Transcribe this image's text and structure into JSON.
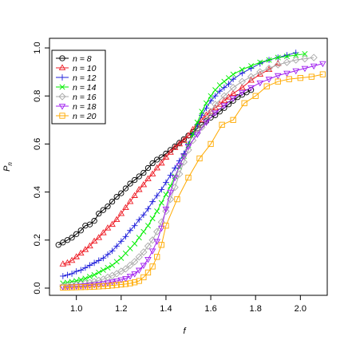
{
  "chart_data": {
    "type": "line",
    "title": "",
    "xlabel": "f",
    "ylabel": "P_n",
    "xlim": [
      0.88,
      2.12
    ],
    "ylim": [
      -0.03,
      1.04
    ],
    "xticks": [
      1.0,
      1.2,
      1.4,
      1.6,
      1.8,
      2.0
    ],
    "xtick_labels": [
      "1.0",
      "1.2",
      "1.4",
      "1.6",
      "1.8",
      "2.0"
    ],
    "yticks": [
      0.0,
      0.2,
      0.4,
      0.6,
      0.8,
      1.0
    ],
    "ytick_labels": [
      "0.0",
      "0.2",
      "0.4",
      "0.6",
      "0.8",
      "1.0"
    ],
    "grid": false,
    "legend_position": "top-left",
    "series": [
      {
        "name": "n = 8",
        "color": "#000000",
        "marker": "circle",
        "x": [
          0.92,
          0.94,
          0.96,
          0.98,
          1.0,
          1.02,
          1.04,
          1.06,
          1.08,
          1.1,
          1.12,
          1.14,
          1.16,
          1.18,
          1.2,
          1.22,
          1.24,
          1.26,
          1.28,
          1.3,
          1.32,
          1.34,
          1.36,
          1.38,
          1.4,
          1.42,
          1.44,
          1.46,
          1.48,
          1.5,
          1.52,
          1.54,
          1.56,
          1.58,
          1.6,
          1.62,
          1.64,
          1.66,
          1.68,
          1.7,
          1.72,
          1.74,
          1.76,
          1.78
        ],
        "y": [
          0.18,
          0.19,
          0.2,
          0.21,
          0.225,
          0.24,
          0.26,
          0.265,
          0.28,
          0.31,
          0.325,
          0.34,
          0.36,
          0.38,
          0.395,
          0.415,
          0.435,
          0.45,
          0.465,
          0.48,
          0.5,
          0.52,
          0.535,
          0.545,
          0.56,
          0.575,
          0.59,
          0.605,
          0.62,
          0.635,
          0.65,
          0.665,
          0.68,
          0.695,
          0.71,
          0.72,
          0.735,
          0.75,
          0.765,
          0.78,
          0.795,
          0.805,
          0.815,
          0.825
        ]
      },
      {
        "name": "n = 10",
        "color": "#ee1c25",
        "marker": "triangle",
        "x": [
          0.94,
          0.96,
          0.98,
          1.0,
          1.02,
          1.04,
          1.06,
          1.08,
          1.1,
          1.12,
          1.14,
          1.16,
          1.18,
          1.2,
          1.22,
          1.24,
          1.26,
          1.28,
          1.3,
          1.32,
          1.34,
          1.36,
          1.38,
          1.4,
          1.42,
          1.44,
          1.46,
          1.48,
          1.5,
          1.52,
          1.54,
          1.56,
          1.58,
          1.6,
          1.62,
          1.64,
          1.66,
          1.68,
          1.7,
          1.74,
          1.78,
          1.82,
          1.86,
          1.9
        ],
        "y": [
          0.1,
          0.105,
          0.115,
          0.13,
          0.145,
          0.16,
          0.175,
          0.195,
          0.21,
          0.23,
          0.25,
          0.265,
          0.285,
          0.31,
          0.335,
          0.36,
          0.385,
          0.41,
          0.43,
          0.455,
          0.475,
          0.5,
          0.52,
          0.545,
          0.565,
          0.585,
          0.6,
          0.615,
          0.635,
          0.66,
          0.68,
          0.7,
          0.72,
          0.735,
          0.75,
          0.765,
          0.78,
          0.795,
          0.81,
          0.835,
          0.865,
          0.89,
          0.91,
          0.935
        ]
      },
      {
        "name": "n = 12",
        "color": "#1f1fdb",
        "marker": "plus",
        "x": [
          0.94,
          0.96,
          0.98,
          1.0,
          1.02,
          1.04,
          1.06,
          1.08,
          1.1,
          1.12,
          1.14,
          1.16,
          1.18,
          1.2,
          1.22,
          1.24,
          1.26,
          1.28,
          1.3,
          1.32,
          1.34,
          1.36,
          1.38,
          1.4,
          1.42,
          1.44,
          1.46,
          1.48,
          1.5,
          1.52,
          1.54,
          1.56,
          1.58,
          1.6,
          1.62,
          1.64,
          1.66,
          1.68,
          1.7,
          1.74,
          1.78,
          1.82,
          1.86,
          1.9,
          1.94,
          1.98
        ],
        "y": [
          0.05,
          0.055,
          0.06,
          0.07,
          0.075,
          0.085,
          0.095,
          0.105,
          0.115,
          0.125,
          0.14,
          0.155,
          0.175,
          0.195,
          0.215,
          0.24,
          0.26,
          0.285,
          0.305,
          0.33,
          0.36,
          0.385,
          0.41,
          0.44,
          0.47,
          0.5,
          0.53,
          0.56,
          0.6,
          0.64,
          0.68,
          0.72,
          0.75,
          0.78,
          0.8,
          0.82,
          0.835,
          0.85,
          0.87,
          0.895,
          0.915,
          0.935,
          0.95,
          0.96,
          0.97,
          0.98
        ]
      },
      {
        "name": "n = 14",
        "color": "#00ee00",
        "marker": "cross",
        "x": [
          0.94,
          0.96,
          0.98,
          1.0,
          1.02,
          1.04,
          1.06,
          1.08,
          1.1,
          1.12,
          1.14,
          1.16,
          1.18,
          1.2,
          1.22,
          1.24,
          1.26,
          1.28,
          1.3,
          1.32,
          1.34,
          1.36,
          1.38,
          1.4,
          1.42,
          1.44,
          1.46,
          1.48,
          1.5,
          1.52,
          1.54,
          1.56,
          1.58,
          1.6,
          1.62,
          1.64,
          1.66,
          1.68,
          1.7,
          1.74,
          1.78,
          1.82,
          1.86,
          1.9,
          1.94,
          1.98,
          2.02
        ],
        "y": [
          0.02,
          0.023,
          0.027,
          0.03,
          0.035,
          0.04,
          0.048,
          0.055,
          0.065,
          0.075,
          0.085,
          0.095,
          0.11,
          0.125,
          0.145,
          0.165,
          0.185,
          0.21,
          0.235,
          0.26,
          0.29,
          0.32,
          0.355,
          0.39,
          0.425,
          0.465,
          0.505,
          0.55,
          0.595,
          0.64,
          0.69,
          0.735,
          0.77,
          0.8,
          0.825,
          0.845,
          0.86,
          0.875,
          0.89,
          0.91,
          0.925,
          0.94,
          0.95,
          0.96,
          0.965,
          0.97,
          0.975
        ]
      },
      {
        "name": "n = 16",
        "color": "#aaaaaa",
        "marker": "diamond",
        "x": [
          0.94,
          0.96,
          0.98,
          1.0,
          1.02,
          1.04,
          1.06,
          1.08,
          1.1,
          1.12,
          1.14,
          1.16,
          1.18,
          1.2,
          1.22,
          1.24,
          1.26,
          1.28,
          1.3,
          1.32,
          1.34,
          1.36,
          1.38,
          1.4,
          1.42,
          1.44,
          1.46,
          1.48,
          1.5,
          1.52,
          1.54,
          1.56,
          1.58,
          1.6,
          1.62,
          1.66,
          1.7,
          1.74,
          1.78,
          1.82,
          1.86,
          1.9,
          1.94,
          1.98,
          2.02,
          2.06
        ],
        "y": [
          0.008,
          0.01,
          0.012,
          0.014,
          0.017,
          0.02,
          0.023,
          0.027,
          0.032,
          0.037,
          0.045,
          0.052,
          0.06,
          0.07,
          0.08,
          0.095,
          0.11,
          0.13,
          0.15,
          0.175,
          0.2,
          0.235,
          0.275,
          0.32,
          0.37,
          0.42,
          0.475,
          0.525,
          0.575,
          0.615,
          0.645,
          0.67,
          0.7,
          0.735,
          0.765,
          0.8,
          0.835,
          0.86,
          0.88,
          0.9,
          0.915,
          0.93,
          0.94,
          0.95,
          0.955,
          0.96
        ]
      },
      {
        "name": "n = 18",
        "color": "#a020f0",
        "marker": "triangle-down",
        "x": [
          0.94,
          0.96,
          0.98,
          1.0,
          1.02,
          1.04,
          1.06,
          1.08,
          1.1,
          1.12,
          1.14,
          1.16,
          1.18,
          1.2,
          1.22,
          1.24,
          1.26,
          1.28,
          1.3,
          1.32,
          1.34,
          1.36,
          1.38,
          1.4,
          1.42,
          1.44,
          1.46,
          1.48,
          1.5,
          1.54,
          1.58,
          1.62,
          1.66,
          1.7,
          1.74,
          1.78,
          1.82,
          1.86,
          1.9,
          1.94,
          1.98,
          2.02,
          2.06,
          2.1
        ],
        "y": [
          0.005,
          0.006,
          0.007,
          0.008,
          0.009,
          0.01,
          0.012,
          0.014,
          0.016,
          0.019,
          0.022,
          0.026,
          0.03,
          0.035,
          0.04,
          0.05,
          0.06,
          0.075,
          0.095,
          0.12,
          0.155,
          0.195,
          0.25,
          0.33,
          0.4,
          0.46,
          0.51,
          0.55,
          0.59,
          0.64,
          0.69,
          0.73,
          0.76,
          0.79,
          0.815,
          0.835,
          0.855,
          0.87,
          0.885,
          0.895,
          0.905,
          0.915,
          0.925,
          0.935
        ]
      },
      {
        "name": "n = 20",
        "color": "#ffaa00",
        "marker": "square",
        "x": [
          0.94,
          0.96,
          0.98,
          1.0,
          1.02,
          1.04,
          1.06,
          1.08,
          1.1,
          1.12,
          1.14,
          1.16,
          1.18,
          1.2,
          1.22,
          1.24,
          1.26,
          1.28,
          1.3,
          1.32,
          1.34,
          1.36,
          1.38,
          1.4,
          1.45,
          1.5,
          1.55,
          1.6,
          1.65,
          1.7,
          1.75,
          1.8,
          1.85,
          1.9,
          1.95,
          2.0,
          2.05,
          2.1
        ],
        "y": [
          0.002,
          0.0025,
          0.003,
          0.0035,
          0.004,
          0.0045,
          0.005,
          0.006,
          0.007,
          0.008,
          0.009,
          0.011,
          0.013,
          0.015,
          0.017,
          0.02,
          0.024,
          0.03,
          0.045,
          0.065,
          0.09,
          0.13,
          0.18,
          0.26,
          0.37,
          0.46,
          0.54,
          0.6,
          0.68,
          0.7,
          0.77,
          0.8,
          0.84,
          0.86,
          0.87,
          0.875,
          0.88,
          0.89
        ]
      }
    ]
  }
}
